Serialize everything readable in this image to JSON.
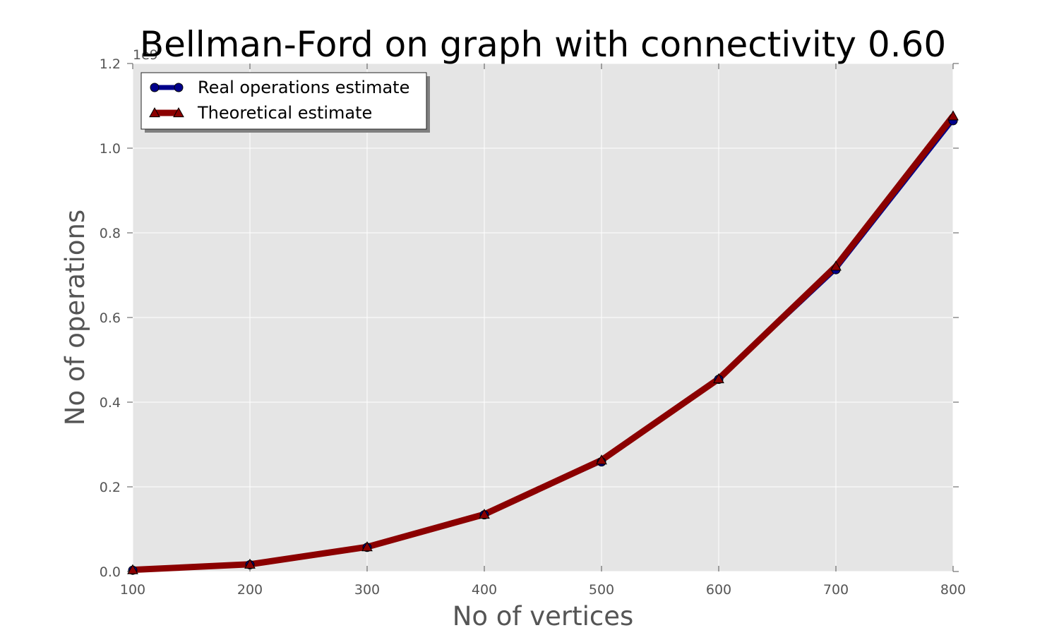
{
  "chart_data": {
    "type": "line",
    "title": "Bellman-Ford on graph with connectivity 0.60",
    "xlabel": "No of vertices",
    "ylabel": "No of operations",
    "y_offset_label": "1e9",
    "x": [
      100,
      200,
      300,
      400,
      500,
      600,
      700,
      800
    ],
    "xlim": [
      100,
      800
    ],
    "ylim": [
      0.0,
      1.2
    ],
    "x_ticks": [
      "100",
      "200",
      "300",
      "400",
      "500",
      "600",
      "700",
      "800"
    ],
    "y_ticks": [
      "0.0",
      "0.2",
      "0.4",
      "0.6",
      "0.8",
      "1.0",
      "1.2"
    ],
    "grid": true,
    "legend_position": "top-left",
    "series": [
      {
        "name": "Real operations estimate",
        "color": "#00008b",
        "marker": "circle",
        "values": [
          0.003,
          0.016,
          0.057,
          0.134,
          0.259,
          0.454,
          0.713,
          1.065
        ]
      },
      {
        "name": "Theoretical estimate",
        "color": "#8b0000",
        "marker": "triangle",
        "values": [
          0.004,
          0.017,
          0.058,
          0.135,
          0.263,
          0.455,
          0.721,
          1.076
        ]
      }
    ],
    "background_color": "#e5e5e5",
    "grid_color": "#ffffff"
  }
}
